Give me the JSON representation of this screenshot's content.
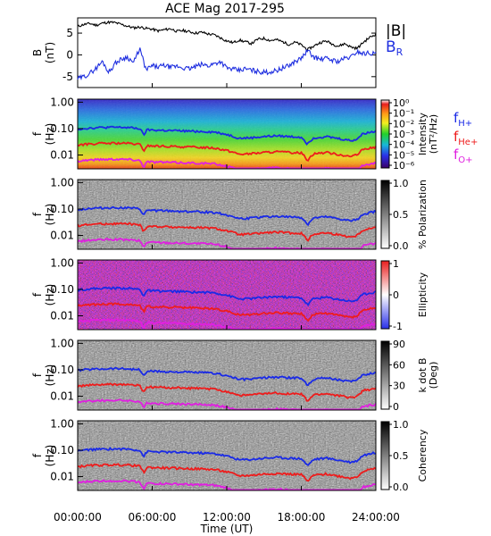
{
  "title": "ACE Mag 2017-295",
  "colors": {
    "bmag": "#000000",
    "br": "#1f2fe0",
    "fH": "#1a2ae6",
    "fHe": "#ee1c1c",
    "fO": "#e01fe0"
  },
  "chart_data": {
    "type": "line+spectrogram",
    "xlabel": "Time (UT)",
    "x_ticks": [
      "00:00:00",
      "06:00:00",
      "12:00:00",
      "18:00:00",
      "24:00:00"
    ],
    "x_range_hours": [
      0,
      24
    ],
    "field_panel": {
      "ylabel_top": "B",
      "ylabel_bottom": "(nT)",
      "ylim": [
        -7.5,
        8.5
      ],
      "y_ticks": [
        "5",
        "0",
        "-5"
      ],
      "legend_bmag": "|B|",
      "legend_br": "B",
      "legend_br_sub": "R",
      "series_bmag": {
        "hours": [
          0,
          0.5,
          1,
          1.5,
          2,
          2.5,
          3,
          3.5,
          4,
          4.5,
          5,
          5.5,
          6,
          6.5,
          7,
          7.5,
          8,
          8.5,
          9,
          9.5,
          10,
          10.5,
          11,
          11.5,
          12,
          12.5,
          13,
          13.5,
          14,
          14.5,
          15,
          15.5,
          16,
          16.5,
          17,
          17.5,
          18,
          18.5,
          19,
          19.5,
          20,
          20.5,
          21,
          21.5,
          22,
          22.5,
          23,
          23.5,
          24
        ],
        "values": [
          6.5,
          7.0,
          7.2,
          6.8,
          7.3,
          7.5,
          7.4,
          7.0,
          6.6,
          6.2,
          6.4,
          6.1,
          5.9,
          5.5,
          5.8,
          6.0,
          5.4,
          5.6,
          5.3,
          5.0,
          5.2,
          4.8,
          4.6,
          3.9,
          3.2,
          2.8,
          3.4,
          3.0,
          2.6,
          3.6,
          3.8,
          3.3,
          3.5,
          3.0,
          2.4,
          2.9,
          2.3,
          1.2,
          2.0,
          2.8,
          3.2,
          2.5,
          2.0,
          2.6,
          1.8,
          1.5,
          2.9,
          4.0,
          4.8
        ]
      },
      "series_br": {
        "hours": [
          0,
          0.5,
          1,
          1.5,
          2,
          2.5,
          3,
          3.5,
          4,
          4.5,
          5,
          5.5,
          6,
          6.5,
          7,
          7.5,
          8,
          8.5,
          9,
          9.5,
          10,
          10.5,
          11,
          11.5,
          12,
          12.5,
          13,
          13.5,
          14,
          14.5,
          15,
          15.5,
          16,
          16.5,
          17,
          17.5,
          18,
          18.5,
          19,
          19.5,
          20,
          20.5,
          21,
          21.5,
          22,
          22.5,
          23,
          23.5,
          24
        ],
        "values": [
          -5.5,
          -5.0,
          -4.2,
          -3.0,
          -1.5,
          -4.0,
          -2.0,
          -1.0,
          -0.5,
          -1.8,
          1.5,
          -3.5,
          -2.5,
          -2.8,
          -2.4,
          -2.9,
          -2.6,
          -3.0,
          -3.2,
          -2.7,
          -2.2,
          -2.5,
          -2.0,
          -1.5,
          -3.0,
          -3.3,
          -3.6,
          -3.2,
          -3.5,
          -3.8,
          -4.0,
          -3.9,
          -3.6,
          -3.0,
          -2.5,
          -1.5,
          -0.8,
          1.0,
          -0.5,
          -1.0,
          -0.8,
          -1.2,
          -1.5,
          -0.8,
          -0.5,
          0.8,
          0.3,
          0.5,
          0.2
        ]
      }
    },
    "spectral_panels": [
      {
        "key": "intensity",
        "bar_labels": [
          "Intensity",
          "(nT²/Hz)"
        ],
        "bar_ticks": [
          "10⁰",
          "10⁻¹",
          "10⁻²",
          "10⁻³",
          "10⁻⁴",
          "10⁻⁵",
          "10⁻⁶"
        ],
        "colormap": "rainbow",
        "legend": true
      },
      {
        "key": "polarization",
        "bar_labels": [
          "% Polarization"
        ],
        "bar_ticks": [
          "1.0",
          "0.5",
          "0.0"
        ],
        "colormap": "gray"
      },
      {
        "key": "ellipticity",
        "bar_labels": [
          "Ellipticity"
        ],
        "bar_ticks": [
          "1",
          "0",
          "-1"
        ],
        "colormap": "bwr"
      },
      {
        "key": "kdotb",
        "bar_labels": [
          "k dot B",
          "(Deg)"
        ],
        "bar_ticks": [
          "90",
          "60",
          "30",
          "0"
        ],
        "colormap": "gray"
      },
      {
        "key": "coherency",
        "bar_labels": [
          "Coherency"
        ],
        "bar_ticks": [
          "1.0",
          "0.5",
          "0.0"
        ],
        "colormap": "gray"
      }
    ],
    "freq_axis": {
      "ylabel_top": "f",
      "ylabel_bottom": "(Hz)",
      "ticks": [
        "1.00",
        "0.10",
        "0.01"
      ],
      "ylim_hz": [
        0.003,
        1.3
      ],
      "scale": "log"
    },
    "gyro_legend": {
      "h_main": "f",
      "h_sub": "H+",
      "he_main": "f",
      "he_sub": "He+",
      "o_main": "f",
      "o_sub": "O+"
    },
    "gyrofrequency_H_hz": {
      "hours": [
        0,
        1,
        2,
        3,
        4,
        5,
        5.3,
        5.6,
        6,
        7,
        8,
        9,
        10,
        11,
        12,
        13,
        14,
        15,
        16,
        17,
        18,
        18.5,
        19,
        20,
        21,
        22,
        22.5,
        23,
        24
      ],
      "values": [
        0.095,
        0.105,
        0.11,
        0.112,
        0.11,
        0.1,
        0.055,
        0.09,
        0.088,
        0.085,
        0.083,
        0.08,
        0.078,
        0.074,
        0.06,
        0.043,
        0.045,
        0.05,
        0.053,
        0.05,
        0.048,
        0.025,
        0.045,
        0.05,
        0.042,
        0.035,
        0.04,
        0.065,
        0.08
      ]
    }
  }
}
